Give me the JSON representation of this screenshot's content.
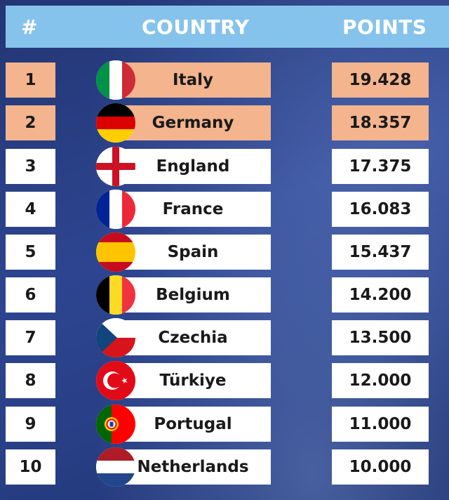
{
  "header": {
    "rank": "#",
    "country": "COUNTRY",
    "points": "POINTS"
  },
  "rows": [
    {
      "rank": "1",
      "country": "Italy",
      "points": "19.428",
      "flag": "italy-flag"
    },
    {
      "rank": "2",
      "country": "Germany",
      "points": "18.357",
      "flag": "germany-flag"
    },
    {
      "rank": "3",
      "country": "England",
      "points": "17.375",
      "flag": "england-flag"
    },
    {
      "rank": "4",
      "country": "France",
      "points": "16.083",
      "flag": "france-flag"
    },
    {
      "rank": "5",
      "country": "Spain",
      "points": "15.437",
      "flag": "spain-flag"
    },
    {
      "rank": "6",
      "country": "Belgium",
      "points": "14.200",
      "flag": "belgium-flag"
    },
    {
      "rank": "7",
      "country": "Czechia",
      "points": "13.500",
      "flag": "czechia-flag"
    },
    {
      "rank": "8",
      "country": "Türkiye",
      "points": "12.000",
      "flag": "turkiye-flag"
    },
    {
      "rank": "9",
      "country": "Portugal",
      "points": "11.000",
      "flag": "portugal-flag"
    },
    {
      "rank": "10",
      "country": "Netherlands",
      "points": "10.000",
      "flag": "netherlands-flag"
    }
  ],
  "colors": {
    "header": "#86c3ec",
    "highlight": "#f3b48e",
    "row": "#ffffff",
    "background": "#2d4590"
  }
}
